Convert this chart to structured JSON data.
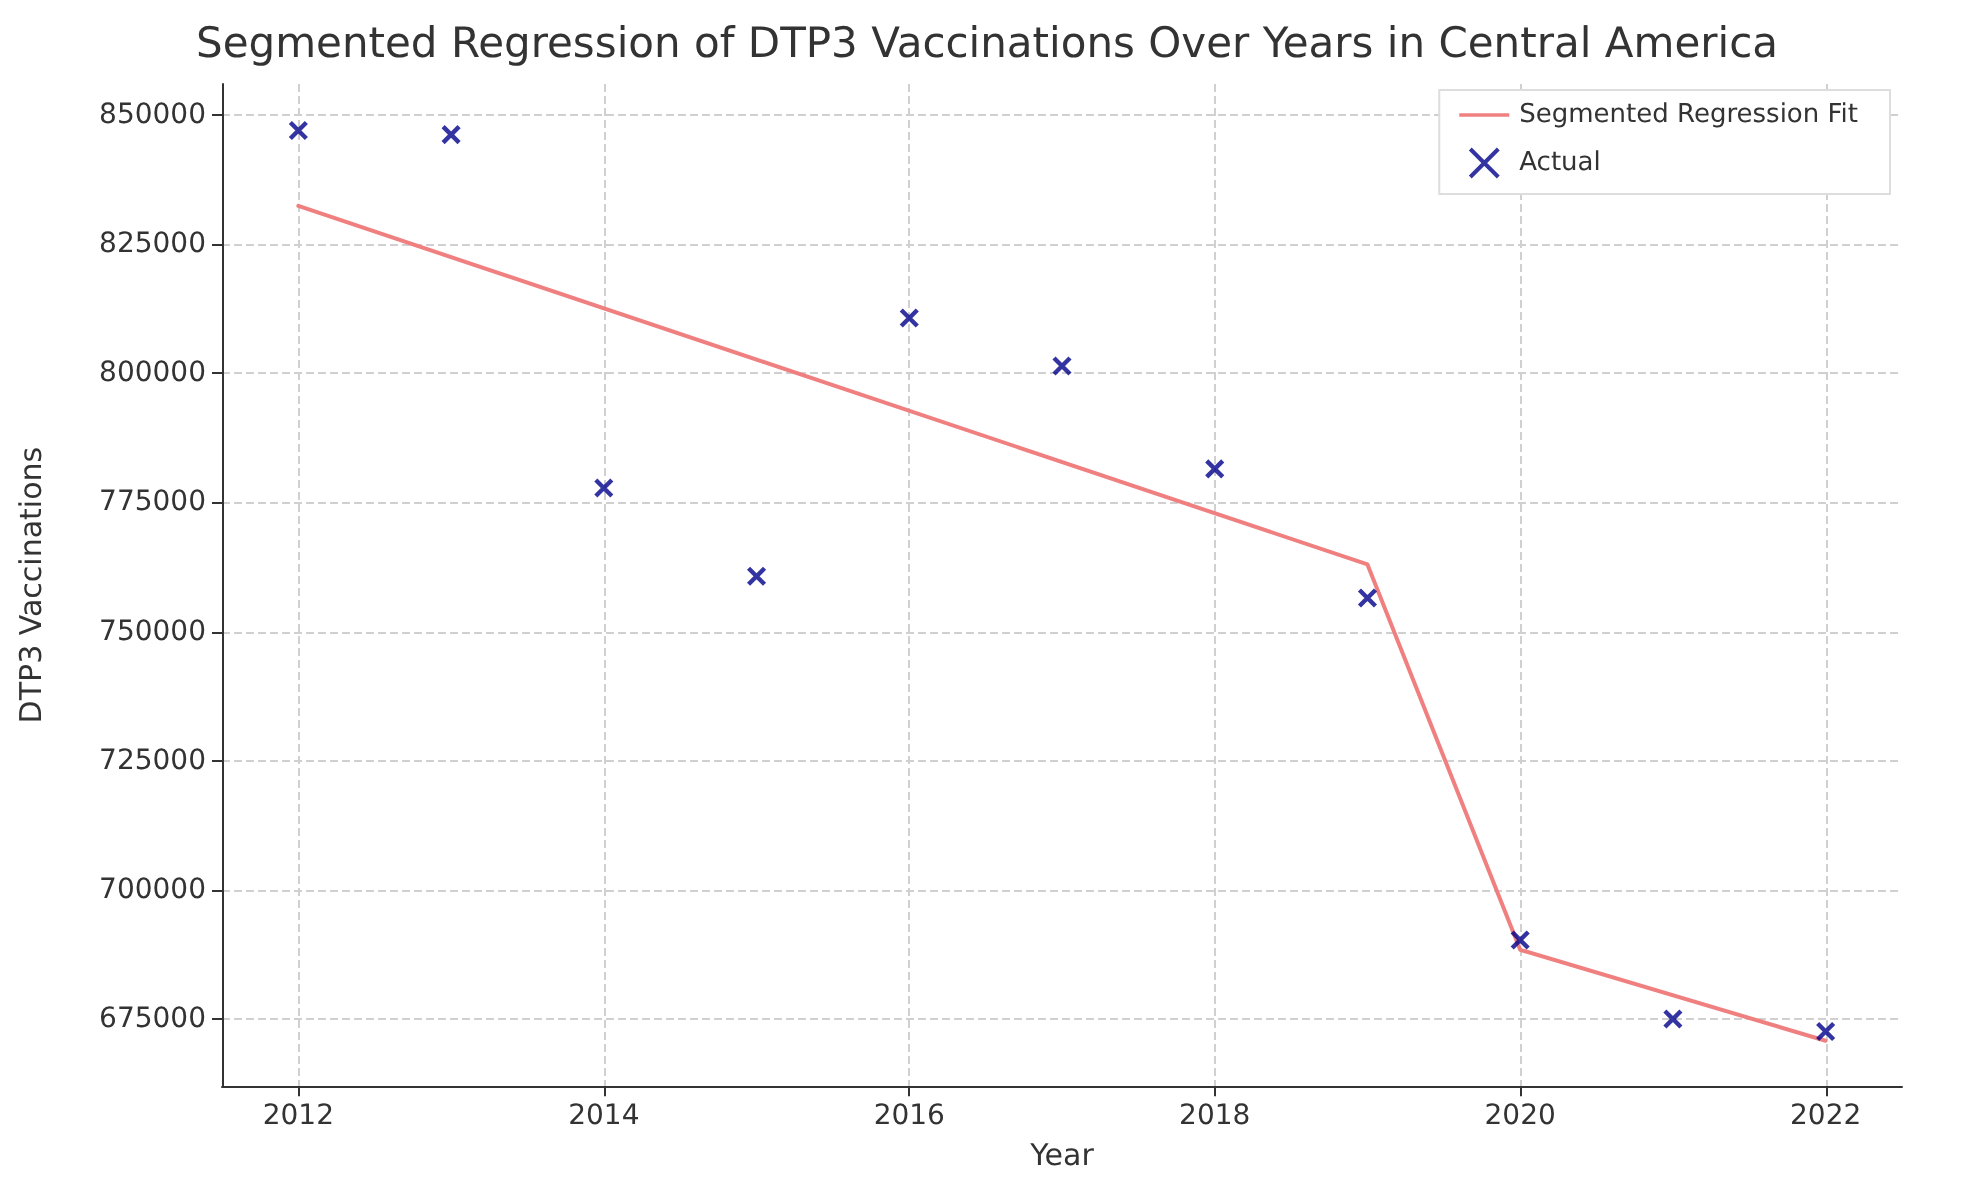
{
  "chart_data": {
    "type": "scatter",
    "title": "Segmented Regression of DTP3 Vaccinations Over Years in Central America",
    "xlabel": "Year",
    "ylabel": "DTP3 Vaccinations",
    "series": [
      {
        "name": "Segmented Regression Fit",
        "type": "line",
        "color": "#f08080",
        "marker": "none",
        "line_style": "solid",
        "x": [
          2012,
          2019,
          2020,
          2022
        ],
        "values": [
          832400,
          763000,
          688400,
          670800
        ]
      },
      {
        "name": "Actual",
        "color": "#00008b",
        "marker": "cross",
        "x": [
          2012,
          2013,
          2014,
          2015,
          2016,
          2017,
          2018,
          2019,
          2020,
          2021,
          2022
        ],
        "values": [
          847000,
          846200,
          777800,
          760700,
          810700,
          801400,
          781500,
          756500,
          690300,
          675000,
          672600
        ]
      }
    ],
    "xlim": [
      2011.5,
      2022.5
    ],
    "xticks": [
      2012,
      2014,
      2016,
      2018,
      2020,
      2022
    ],
    "ylim": [
      662000,
      856000
    ],
    "yticks": [
      675000,
      700000,
      725000,
      750000,
      775000,
      800000,
      825000,
      850000
    ],
    "grid": true,
    "legend": "top right"
  }
}
